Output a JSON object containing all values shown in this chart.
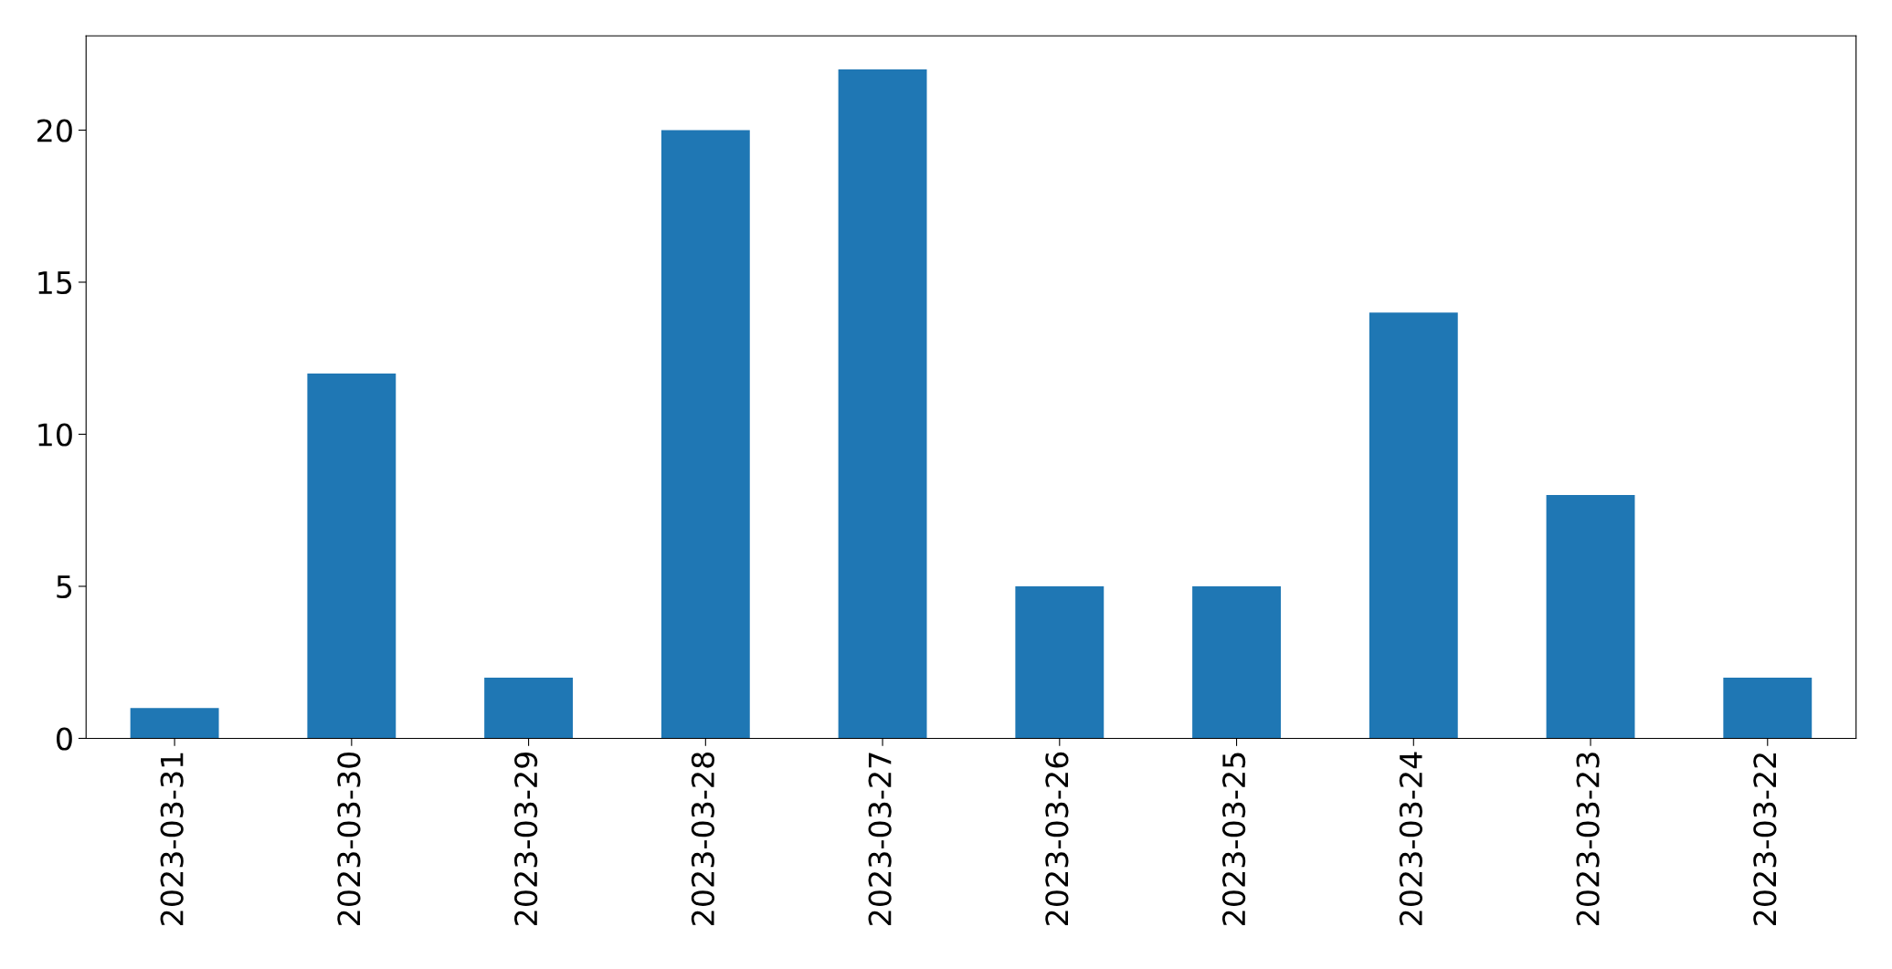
{
  "chart_data": {
    "type": "bar",
    "categories": [
      "2023-03-31",
      "2023-03-30",
      "2023-03-29",
      "2023-03-28",
      "2023-03-27",
      "2023-03-26",
      "2023-03-25",
      "2023-03-24",
      "2023-03-23",
      "2023-03-22"
    ],
    "values": [
      1,
      12,
      2,
      20,
      22,
      5,
      5,
      14,
      8,
      2
    ],
    "color": "#1f77b4",
    "ylim": [
      0,
      23.1
    ],
    "yticks": [
      0,
      5,
      10,
      15,
      20
    ],
    "grid": false,
    "legend": false
  }
}
